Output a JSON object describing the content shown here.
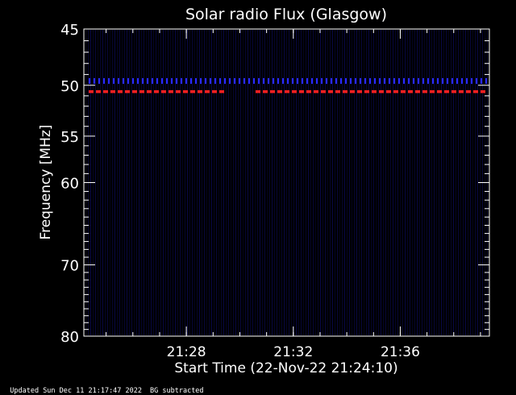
{
  "chart_data": {
    "type": "heatmap",
    "title": "Solar radio Flux (Glasgow)",
    "xlabel": "Start Time (22-Nov-22 21:24:10)",
    "ylabel": "Frequency [MHz]",
    "x_range": [
      "21:24:10",
      "21:39:20"
    ],
    "x_ticks": [
      "21:28",
      "21:32",
      "21:36"
    ],
    "y_range": [
      45,
      80
    ],
    "y_scale": "log",
    "y_ticks": [
      45,
      50,
      55,
      60,
      70,
      80
    ],
    "y_inverted": true,
    "background_color": "#000000",
    "axis_color": "#ffffff",
    "features": [
      {
        "name": "blue-band",
        "frequency_mhz": 49.6,
        "color": "#2a2aff"
      },
      {
        "name": "red-band",
        "frequency_mhz": 50.6,
        "color": "#ff2020",
        "gap": [
          "21:29:30",
          "21:30:20"
        ]
      }
    ]
  },
  "footer": {
    "updated": "Updated Sun Dec 11 21:17:47 2022",
    "bg_note": "BG subtracted"
  }
}
